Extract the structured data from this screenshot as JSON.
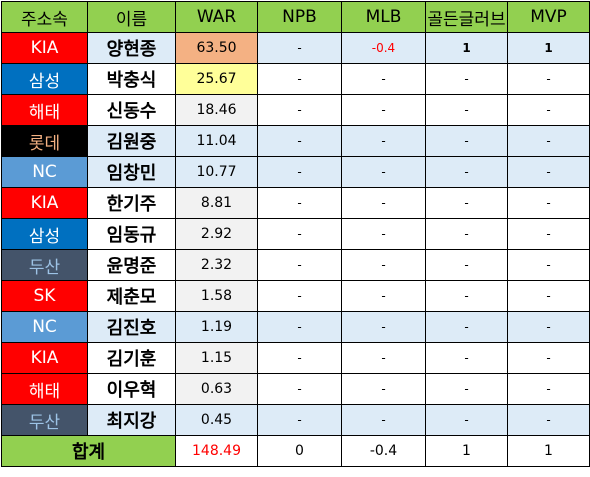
{
  "colors": {
    "header_green": "#92d050",
    "row_highlight": "#ddebf7",
    "kia": "#ff0000",
    "samsung": "#0070c0",
    "haitai": "#ff0000",
    "lotte": "#000000",
    "lotte_text": "#f4b183",
    "nc": "#5b9bd5",
    "doosan": "#44546a",
    "doosan_text": "#9dc3e6",
    "sk": "#ff0000",
    "war_top1": "#f4b183",
    "war_top2": "#ffff99",
    "war_rest": "#f2f2f2",
    "negative_text": "#ff0000"
  },
  "headers": [
    "주소속",
    "이름",
    "WAR",
    "NPB",
    "MLB",
    "골든글러브",
    "MVP"
  ],
  "rows": [
    {
      "team": "KIA",
      "name": "양현종",
      "war": "63.50",
      "npb": "-",
      "mlb": "-0.4",
      "gg": "1",
      "mvp": "1"
    },
    {
      "team": "삼성",
      "name": "박충식",
      "war": "25.67",
      "npb": "-",
      "mlb": "-",
      "gg": "-",
      "mvp": "-"
    },
    {
      "team": "해태",
      "name": "신동수",
      "war": "18.46",
      "npb": "-",
      "mlb": "-",
      "gg": "-",
      "mvp": "-"
    },
    {
      "team": "롯데",
      "name": "김원중",
      "war": "11.04",
      "npb": "-",
      "mlb": "-",
      "gg": "-",
      "mvp": "-"
    },
    {
      "team": "NC",
      "name": "임창민",
      "war": "10.77",
      "npb": "-",
      "mlb": "-",
      "gg": "-",
      "mvp": "-"
    },
    {
      "team": "KIA",
      "name": "한기주",
      "war": "8.81",
      "npb": "-",
      "mlb": "-",
      "gg": "-",
      "mvp": "-"
    },
    {
      "team": "삼성",
      "name": "임동규",
      "war": "2.92",
      "npb": "-",
      "mlb": "-",
      "gg": "-",
      "mvp": "-"
    },
    {
      "team": "두산",
      "name": "윤명준",
      "war": "2.32",
      "npb": "-",
      "mlb": "-",
      "gg": "-",
      "mvp": "-"
    },
    {
      "team": "SK",
      "name": "제춘모",
      "war": "1.58",
      "npb": "-",
      "mlb": "-",
      "gg": "-",
      "mvp": "-"
    },
    {
      "team": "NC",
      "name": "김진호",
      "war": "1.19",
      "npb": "-",
      "mlb": "-",
      "gg": "-",
      "mvp": "-"
    },
    {
      "team": "KIA",
      "name": "김기훈",
      "war": "1.15",
      "npb": "-",
      "mlb": "-",
      "gg": "-",
      "mvp": "-"
    },
    {
      "team": "해태",
      "name": "이우혁",
      "war": "0.63",
      "npb": "-",
      "mlb": "-",
      "gg": "-",
      "mvp": "-"
    },
    {
      "team": "두산",
      "name": "최지강",
      "war": "0.45",
      "npb": "-",
      "mlb": "-",
      "gg": "-",
      "mvp": "-"
    }
  ],
  "total": {
    "label": "합계",
    "war": "148.49",
    "npb": "0",
    "mlb": "-0.4",
    "gg": "1",
    "mvp": "1"
  }
}
